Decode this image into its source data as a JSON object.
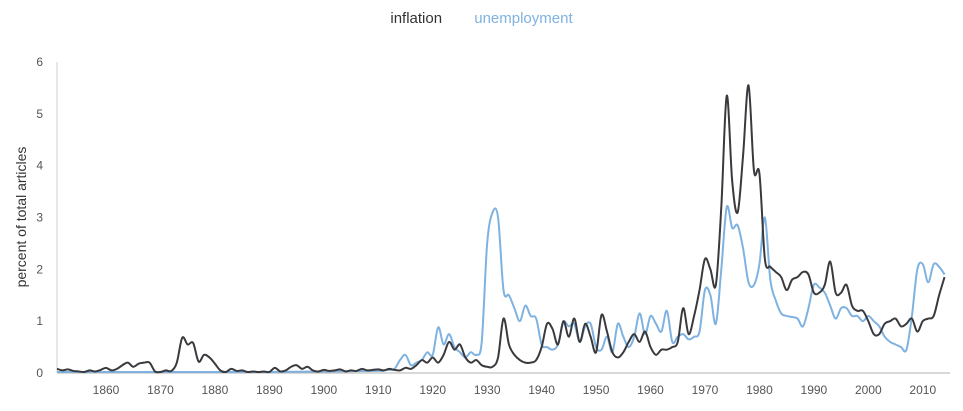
{
  "chart_data": {
    "type": "line",
    "title": "",
    "xlabel": "",
    "ylabel": "percent of total articles",
    "xlim": [
      1851,
      2015
    ],
    "ylim": [
      0,
      6
    ],
    "xticks": [
      1860,
      1870,
      1880,
      1890,
      1900,
      1910,
      1920,
      1930,
      1940,
      1950,
      1960,
      1970,
      1980,
      1990,
      2000,
      2010
    ],
    "yticks": [
      0,
      1,
      2,
      3,
      4,
      5,
      6
    ],
    "legend_position": "top-center",
    "grid": false,
    "series": [
      {
        "name": "inflation",
        "color": "#3a3a3e",
        "points": [
          [
            1851,
            0.08
          ],
          [
            1852,
            0.05
          ],
          [
            1853,
            0.07
          ],
          [
            1854,
            0.04
          ],
          [
            1855,
            0.03
          ],
          [
            1856,
            0.02
          ],
          [
            1857,
            0.05
          ],
          [
            1858,
            0.03
          ],
          [
            1859,
            0.06
          ],
          [
            1860,
            0.1
          ],
          [
            1861,
            0.05
          ],
          [
            1862,
            0.08
          ],
          [
            1863,
            0.15
          ],
          [
            1864,
            0.2
          ],
          [
            1865,
            0.12
          ],
          [
            1866,
            0.18
          ],
          [
            1867,
            0.2
          ],
          [
            1868,
            0.2
          ],
          [
            1869,
            0.03
          ],
          [
            1870,
            0.02
          ],
          [
            1871,
            0.05
          ],
          [
            1872,
            0.04
          ],
          [
            1873,
            0.2
          ],
          [
            1874,
            0.68
          ],
          [
            1875,
            0.55
          ],
          [
            1876,
            0.58
          ],
          [
            1877,
            0.22
          ],
          [
            1878,
            0.35
          ],
          [
            1879,
            0.3
          ],
          [
            1880,
            0.18
          ],
          [
            1881,
            0.05
          ],
          [
            1882,
            0.02
          ],
          [
            1883,
            0.08
          ],
          [
            1884,
            0.04
          ],
          [
            1885,
            0.05
          ],
          [
            1886,
            0.02
          ],
          [
            1887,
            0.03
          ],
          [
            1888,
            0.02
          ],
          [
            1889,
            0.03
          ],
          [
            1890,
            0.02
          ],
          [
            1891,
            0.1
          ],
          [
            1892,
            0.03
          ],
          [
            1893,
            0.05
          ],
          [
            1894,
            0.12
          ],
          [
            1895,
            0.15
          ],
          [
            1896,
            0.08
          ],
          [
            1897,
            0.12
          ],
          [
            1898,
            0.05
          ],
          [
            1899,
            0.03
          ],
          [
            1900,
            0.06
          ],
          [
            1901,
            0.04
          ],
          [
            1902,
            0.05
          ],
          [
            1903,
            0.07
          ],
          [
            1904,
            0.03
          ],
          [
            1905,
            0.05
          ],
          [
            1906,
            0.04
          ],
          [
            1907,
            0.08
          ],
          [
            1908,
            0.05
          ],
          [
            1909,
            0.06
          ],
          [
            1910,
            0.07
          ],
          [
            1911,
            0.05
          ],
          [
            1912,
            0.08
          ],
          [
            1913,
            0.06
          ],
          [
            1914,
            0.05
          ],
          [
            1915,
            0.1
          ],
          [
            1916,
            0.08
          ],
          [
            1917,
            0.15
          ],
          [
            1918,
            0.25
          ],
          [
            1919,
            0.2
          ],
          [
            1920,
            0.3
          ],
          [
            1921,
            0.2
          ],
          [
            1922,
            0.35
          ],
          [
            1923,
            0.6
          ],
          [
            1924,
            0.45
          ],
          [
            1925,
            0.55
          ],
          [
            1926,
            0.3
          ],
          [
            1927,
            0.2
          ],
          [
            1928,
            0.25
          ],
          [
            1929,
            0.15
          ],
          [
            1930,
            0.12
          ],
          [
            1931,
            0.12
          ],
          [
            1932,
            0.3
          ],
          [
            1933,
            1.05
          ],
          [
            1934,
            0.55
          ],
          [
            1935,
            0.35
          ],
          [
            1936,
            0.25
          ],
          [
            1937,
            0.2
          ],
          [
            1938,
            0.2
          ],
          [
            1939,
            0.25
          ],
          [
            1940,
            0.5
          ],
          [
            1941,
            0.95
          ],
          [
            1942,
            0.85
          ],
          [
            1943,
            0.55
          ],
          [
            1944,
            1.0
          ],
          [
            1945,
            0.7
          ],
          [
            1946,
            1.05
          ],
          [
            1947,
            0.6
          ],
          [
            1948,
            0.95
          ],
          [
            1949,
            0.7
          ],
          [
            1950,
            0.4
          ],
          [
            1951,
            1.12
          ],
          [
            1952,
            0.8
          ],
          [
            1953,
            0.4
          ],
          [
            1954,
            0.3
          ],
          [
            1955,
            0.4
          ],
          [
            1956,
            0.6
          ],
          [
            1957,
            0.75
          ],
          [
            1958,
            0.6
          ],
          [
            1959,
            0.8
          ],
          [
            1960,
            0.5
          ],
          [
            1961,
            0.35
          ],
          [
            1962,
            0.45
          ],
          [
            1963,
            0.45
          ],
          [
            1964,
            0.5
          ],
          [
            1965,
            0.6
          ],
          [
            1966,
            1.25
          ],
          [
            1967,
            0.75
          ],
          [
            1968,
            1.1
          ],
          [
            1969,
            1.6
          ],
          [
            1970,
            2.2
          ],
          [
            1971,
            2.0
          ],
          [
            1972,
            1.7
          ],
          [
            1973,
            3.2
          ],
          [
            1974,
            5.35
          ],
          [
            1975,
            3.7
          ],
          [
            1976,
            3.1
          ],
          [
            1977,
            4.2
          ],
          [
            1978,
            5.55
          ],
          [
            1979,
            3.9
          ],
          [
            1980,
            3.85
          ],
          [
            1981,
            2.2
          ],
          [
            1982,
            2.05
          ],
          [
            1983,
            1.95
          ],
          [
            1984,
            1.85
          ],
          [
            1985,
            1.6
          ],
          [
            1986,
            1.8
          ],
          [
            1987,
            1.85
          ],
          [
            1988,
            1.95
          ],
          [
            1989,
            1.9
          ],
          [
            1990,
            1.55
          ],
          [
            1991,
            1.55
          ],
          [
            1992,
            1.7
          ],
          [
            1993,
            2.15
          ],
          [
            1994,
            1.55
          ],
          [
            1995,
            1.55
          ],
          [
            1996,
            1.7
          ],
          [
            1997,
            1.3
          ],
          [
            1998,
            1.2
          ],
          [
            1999,
            1.2
          ],
          [
            2000,
            1.0
          ],
          [
            2001,
            0.75
          ],
          [
            2002,
            0.75
          ],
          [
            2003,
            0.95
          ],
          [
            2004,
            1.0
          ],
          [
            2005,
            1.05
          ],
          [
            2006,
            0.9
          ],
          [
            2007,
            0.95
          ],
          [
            2008,
            1.05
          ],
          [
            2009,
            0.8
          ],
          [
            2010,
            1.0
          ],
          [
            2011,
            1.05
          ],
          [
            2012,
            1.1
          ],
          [
            2013,
            1.5
          ],
          [
            2014,
            1.85
          ]
        ]
      },
      {
        "name": "unemployment",
        "color": "#7fb2e0",
        "points": [
          [
            1851,
            0.02
          ],
          [
            1860,
            0.02
          ],
          [
            1870,
            0.02
          ],
          [
            1880,
            0.02
          ],
          [
            1890,
            0.02
          ],
          [
            1900,
            0.03
          ],
          [
            1910,
            0.04
          ],
          [
            1911,
            0.05
          ],
          [
            1912,
            0.06
          ],
          [
            1913,
            0.08
          ],
          [
            1914,
            0.25
          ],
          [
            1915,
            0.35
          ],
          [
            1916,
            0.15
          ],
          [
            1917,
            0.2
          ],
          [
            1918,
            0.25
          ],
          [
            1919,
            0.4
          ],
          [
            1920,
            0.35
          ],
          [
            1921,
            0.88
          ],
          [
            1922,
            0.55
          ],
          [
            1923,
            0.75
          ],
          [
            1924,
            0.5
          ],
          [
            1925,
            0.4
          ],
          [
            1926,
            0.3
          ],
          [
            1927,
            0.4
          ],
          [
            1928,
            0.35
          ],
          [
            1929,
            0.6
          ],
          [
            1930,
            2.5
          ],
          [
            1931,
            3.1
          ],
          [
            1932,
            3.0
          ],
          [
            1933,
            1.6
          ],
          [
            1934,
            1.5
          ],
          [
            1935,
            1.25
          ],
          [
            1936,
            1.0
          ],
          [
            1937,
            1.3
          ],
          [
            1938,
            1.1
          ],
          [
            1939,
            1.05
          ],
          [
            1940,
            0.55
          ],
          [
            1941,
            0.5
          ],
          [
            1942,
            0.45
          ],
          [
            1943,
            0.55
          ],
          [
            1944,
            0.98
          ],
          [
            1945,
            0.9
          ],
          [
            1946,
            0.95
          ],
          [
            1947,
            0.6
          ],
          [
            1948,
            0.9
          ],
          [
            1949,
            0.95
          ],
          [
            1950,
            0.5
          ],
          [
            1951,
            0.45
          ],
          [
            1952,
            0.7
          ],
          [
            1953,
            0.4
          ],
          [
            1954,
            0.95
          ],
          [
            1955,
            0.7
          ],
          [
            1956,
            0.5
          ],
          [
            1957,
            0.7
          ],
          [
            1958,
            1.15
          ],
          [
            1959,
            0.75
          ],
          [
            1960,
            1.1
          ],
          [
            1961,
            0.95
          ],
          [
            1962,
            0.8
          ],
          [
            1963,
            1.2
          ],
          [
            1964,
            0.6
          ],
          [
            1965,
            0.7
          ],
          [
            1966,
            0.75
          ],
          [
            1967,
            0.65
          ],
          [
            1968,
            0.7
          ],
          [
            1969,
            0.8
          ],
          [
            1970,
            1.6
          ],
          [
            1971,
            1.5
          ],
          [
            1972,
            0.95
          ],
          [
            1973,
            2.0
          ],
          [
            1974,
            3.2
          ],
          [
            1975,
            2.8
          ],
          [
            1976,
            2.85
          ],
          [
            1977,
            2.4
          ],
          [
            1978,
            1.75
          ],
          [
            1979,
            1.7
          ],
          [
            1980,
            2.1
          ],
          [
            1981,
            3.0
          ],
          [
            1982,
            1.8
          ],
          [
            1983,
            1.4
          ],
          [
            1984,
            1.15
          ],
          [
            1985,
            1.1
          ],
          [
            1986,
            1.08
          ],
          [
            1987,
            1.05
          ],
          [
            1988,
            0.9
          ],
          [
            1989,
            1.25
          ],
          [
            1990,
            1.7
          ],
          [
            1991,
            1.65
          ],
          [
            1992,
            1.55
          ],
          [
            1993,
            1.3
          ],
          [
            1994,
            1.05
          ],
          [
            1995,
            1.25
          ],
          [
            1996,
            1.25
          ],
          [
            1997,
            1.1
          ],
          [
            1998,
            1.1
          ],
          [
            1999,
            1.0
          ],
          [
            2000,
            1.1
          ],
          [
            2001,
            1.0
          ],
          [
            2002,
            0.9
          ],
          [
            2003,
            0.7
          ],
          [
            2004,
            0.6
          ],
          [
            2005,
            0.55
          ],
          [
            2006,
            0.5
          ],
          [
            2007,
            0.45
          ],
          [
            2008,
            1.1
          ],
          [
            2009,
            2.0
          ],
          [
            2010,
            2.1
          ],
          [
            2011,
            1.75
          ],
          [
            2012,
            2.1
          ],
          [
            2013,
            2.05
          ],
          [
            2014,
            1.9
          ]
        ]
      }
    ]
  }
}
